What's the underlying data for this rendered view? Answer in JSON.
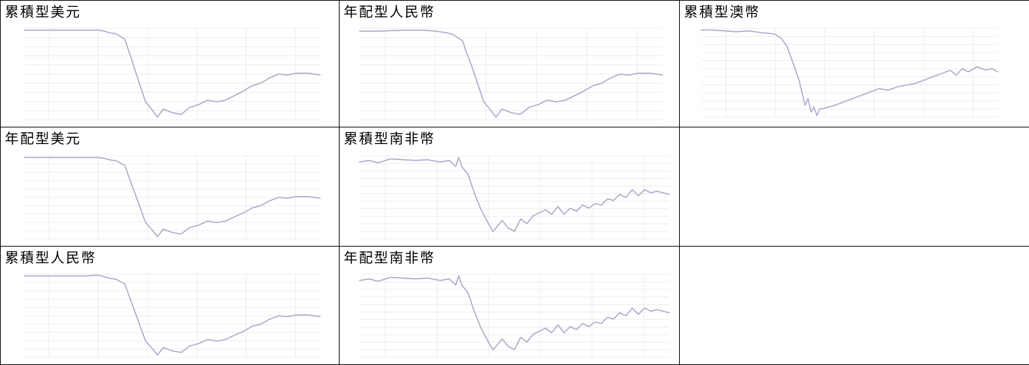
{
  "cells": [
    {
      "title": "累積型美元"
    },
    {
      "title": "年配型人民幣"
    },
    {
      "title": "累積型澳幣"
    },
    {
      "title": "年配型美元"
    },
    {
      "title": "累積型南非幣"
    },
    {
      "title": ""
    },
    {
      "title": "累積型人民幣"
    },
    {
      "title": "年配型南非幣"
    },
    {
      "title": ""
    }
  ],
  "chart_data": [
    {
      "type": "line",
      "title": "累積型美元",
      "ylim": [
        5.0,
        10.1
      ],
      "x_positions": [
        0.0,
        0.07,
        0.14,
        0.21,
        0.25,
        0.27,
        0.29,
        0.31,
        0.34,
        0.35,
        0.37,
        0.39,
        0.41,
        0.43,
        0.45,
        0.47,
        0.5,
        0.53,
        0.56,
        0.59,
        0.62,
        0.65,
        0.68,
        0.71,
        0.74,
        0.77,
        0.8,
        0.83,
        0.86,
        0.89,
        0.92,
        0.96,
        1.0
      ],
      "values": [
        10.0,
        10.0,
        10.0,
        10.0,
        10.0,
        9.95,
        9.85,
        9.8,
        9.5,
        9.0,
        8.0,
        7.0,
        6.0,
        5.6,
        5.15,
        5.6,
        5.4,
        5.3,
        5.7,
        5.85,
        6.1,
        6.0,
        6.1,
        6.35,
        6.6,
        6.9,
        7.05,
        7.35,
        7.55,
        7.5,
        7.6,
        7.6,
        7.5
      ],
      "x_ticks": [
        "",
        "",
        "",
        "",
        "",
        ""
      ],
      "y_ticks": [
        "",
        "",
        "",
        "",
        "",
        "",
        "",
        "",
        "",
        "",
        ""
      ],
      "grid": true,
      "color": "#a9a9cc"
    },
    {
      "type": "line",
      "title": "年配型人民幣",
      "ylim": [
        5.0,
        10.1
      ],
      "x_positions": [
        0.0,
        0.07,
        0.14,
        0.21,
        0.25,
        0.27,
        0.29,
        0.31,
        0.34,
        0.35,
        0.37,
        0.39,
        0.41,
        0.43,
        0.45,
        0.47,
        0.5,
        0.53,
        0.56,
        0.59,
        0.62,
        0.65,
        0.68,
        0.71,
        0.74,
        0.77,
        0.8,
        0.83,
        0.86,
        0.89,
        0.92,
        0.96,
        1.0
      ],
      "values": [
        9.95,
        9.95,
        10.0,
        10.0,
        9.95,
        9.9,
        9.85,
        9.75,
        9.4,
        8.9,
        8.0,
        7.0,
        6.0,
        5.6,
        5.15,
        5.6,
        5.4,
        5.3,
        5.7,
        5.85,
        6.1,
        6.0,
        6.1,
        6.35,
        6.6,
        6.9,
        7.05,
        7.35,
        7.55,
        7.5,
        7.6,
        7.6,
        7.5
      ],
      "x_ticks": [
        "",
        "",
        "",
        "",
        "",
        ""
      ],
      "y_ticks": [
        "",
        "",
        "",
        "",
        "",
        "",
        "",
        "",
        "",
        "",
        ""
      ],
      "grid": true,
      "color": "#a9a9cc"
    },
    {
      "type": "line",
      "title": "累積型澳幣",
      "ylim": [
        4.8,
        10.1
      ],
      "x_positions": [
        0.0,
        0.04,
        0.08,
        0.12,
        0.16,
        0.2,
        0.23,
        0.25,
        0.27,
        0.29,
        0.31,
        0.33,
        0.35,
        0.36,
        0.37,
        0.38,
        0.39,
        0.4,
        0.41,
        0.43,
        0.45,
        0.48,
        0.51,
        0.54,
        0.57,
        0.6,
        0.63,
        0.66,
        0.69,
        0.72,
        0.75,
        0.78,
        0.81,
        0.84,
        0.86,
        0.88,
        0.9,
        0.93,
        0.96,
        0.98,
        1.0
      ],
      "values": [
        10.0,
        10.0,
        9.95,
        9.9,
        9.95,
        9.85,
        9.8,
        9.75,
        9.5,
        9.0,
        8.0,
        7.0,
        5.5,
        5.9,
        5.1,
        5.4,
        4.9,
        5.3,
        5.3,
        5.4,
        5.5,
        5.7,
        5.9,
        6.1,
        6.3,
        6.5,
        6.4,
        6.6,
        6.7,
        6.8,
        7.0,
        7.2,
        7.4,
        7.6,
        7.3,
        7.7,
        7.5,
        7.8,
        7.6,
        7.7,
        7.5
      ],
      "x_ticks": [
        "",
        "",
        "",
        "",
        "",
        ""
      ],
      "y_ticks": [
        "",
        "",
        "",
        "",
        "",
        "",
        "",
        "",
        "",
        "",
        "",
        ""
      ],
      "grid": true,
      "color": "#a9a9cc"
    },
    {
      "type": "line",
      "title": "年配型美元",
      "ylim": [
        5.0,
        10.1
      ],
      "x_positions": [
        0.0,
        0.07,
        0.14,
        0.21,
        0.25,
        0.27,
        0.29,
        0.31,
        0.34,
        0.35,
        0.37,
        0.39,
        0.41,
        0.43,
        0.45,
        0.47,
        0.5,
        0.53,
        0.56,
        0.59,
        0.62,
        0.65,
        0.68,
        0.71,
        0.74,
        0.77,
        0.8,
        0.83,
        0.86,
        0.89,
        0.92,
        0.96,
        1.0
      ],
      "values": [
        10.0,
        10.0,
        10.0,
        10.0,
        10.0,
        9.95,
        9.85,
        9.8,
        9.5,
        9.0,
        8.0,
        7.0,
        6.0,
        5.6,
        5.15,
        5.6,
        5.4,
        5.3,
        5.7,
        5.85,
        6.1,
        6.0,
        6.1,
        6.35,
        6.6,
        6.9,
        7.05,
        7.35,
        7.55,
        7.5,
        7.6,
        7.6,
        7.5
      ],
      "x_ticks": [
        "",
        "",
        "",
        "",
        "",
        ""
      ],
      "y_ticks": [
        "",
        "",
        "",
        "",
        "",
        "",
        "",
        "",
        "",
        "",
        ""
      ],
      "grid": true,
      "color": "#a9a9cc"
    },
    {
      "type": "line",
      "title": "累積型南非幣",
      "ylim": [
        4.8,
        10.2
      ],
      "x_positions": [
        0.0,
        0.03,
        0.06,
        0.1,
        0.14,
        0.18,
        0.22,
        0.26,
        0.29,
        0.31,
        0.32,
        0.33,
        0.35,
        0.37,
        0.39,
        0.41,
        0.43,
        0.44,
        0.46,
        0.48,
        0.5,
        0.52,
        0.54,
        0.56,
        0.58,
        0.6,
        0.62,
        0.64,
        0.66,
        0.68,
        0.7,
        0.72,
        0.74,
        0.76,
        0.78,
        0.8,
        0.82,
        0.84,
        0.86,
        0.88,
        0.9,
        0.92,
        0.94,
        0.96,
        1.0
      ],
      "values": [
        9.8,
        9.9,
        9.75,
        10.0,
        9.95,
        9.9,
        9.95,
        9.8,
        9.9,
        9.5,
        10.1,
        9.5,
        9.0,
        7.8,
        6.8,
        6.0,
        5.3,
        5.5,
        6.0,
        5.5,
        5.3,
        6.1,
        5.8,
        6.3,
        6.5,
        6.7,
        6.4,
        6.9,
        6.4,
        6.8,
        6.6,
        7.0,
        6.8,
        7.1,
        7.0,
        7.4,
        7.3,
        7.7,
        7.5,
        8.0,
        7.6,
        8.0,
        7.8,
        7.9,
        7.7
      ],
      "x_ticks": [
        "",
        "",
        "",
        "",
        "",
        ""
      ],
      "y_ticks": [
        "",
        "",
        "",
        "",
        "",
        "",
        "",
        "",
        "",
        "",
        "",
        ""
      ],
      "grid": true,
      "color": "#a9a9cc"
    },
    {
      "type": "line",
      "title": "累積型人民幣",
      "ylim": [
        5.0,
        10.1
      ],
      "x_positions": [
        0.0,
        0.07,
        0.14,
        0.21,
        0.25,
        0.27,
        0.29,
        0.31,
        0.34,
        0.35,
        0.37,
        0.39,
        0.41,
        0.43,
        0.45,
        0.47,
        0.5,
        0.53,
        0.56,
        0.59,
        0.62,
        0.65,
        0.68,
        0.71,
        0.74,
        0.77,
        0.8,
        0.83,
        0.86,
        0.89,
        0.92,
        0.96,
        1.0
      ],
      "values": [
        10.0,
        10.0,
        10.0,
        10.0,
        10.05,
        9.95,
        9.85,
        9.8,
        9.5,
        9.0,
        8.0,
        7.0,
        6.0,
        5.6,
        5.15,
        5.6,
        5.4,
        5.3,
        5.7,
        5.85,
        6.1,
        6.0,
        6.1,
        6.35,
        6.6,
        6.9,
        7.05,
        7.35,
        7.55,
        7.5,
        7.6,
        7.6,
        7.5
      ],
      "x_ticks": [
        "",
        "",
        "",
        "",
        "",
        ""
      ],
      "y_ticks": [
        "",
        "",
        "",
        "",
        "",
        "",
        "",
        "",
        "",
        "",
        ""
      ],
      "grid": true,
      "color": "#a9a9cc"
    },
    {
      "type": "line",
      "title": "年配型南非幣",
      "ylim": [
        4.8,
        10.2
      ],
      "x_positions": [
        0.0,
        0.03,
        0.06,
        0.1,
        0.14,
        0.18,
        0.22,
        0.26,
        0.29,
        0.31,
        0.32,
        0.33,
        0.35,
        0.37,
        0.39,
        0.41,
        0.43,
        0.44,
        0.46,
        0.48,
        0.5,
        0.52,
        0.54,
        0.56,
        0.58,
        0.6,
        0.62,
        0.64,
        0.66,
        0.68,
        0.7,
        0.72,
        0.74,
        0.76,
        0.78,
        0.8,
        0.82,
        0.84,
        0.86,
        0.88,
        0.9,
        0.92,
        0.94,
        0.96,
        1.0
      ],
      "values": [
        9.8,
        9.9,
        9.75,
        10.0,
        9.95,
        9.9,
        9.95,
        9.8,
        9.9,
        9.5,
        10.1,
        9.5,
        9.0,
        7.8,
        6.8,
        6.0,
        5.3,
        5.5,
        6.0,
        5.5,
        5.3,
        6.1,
        5.8,
        6.3,
        6.5,
        6.7,
        6.4,
        6.9,
        6.4,
        6.8,
        6.6,
        7.0,
        6.8,
        7.1,
        7.0,
        7.4,
        7.3,
        7.7,
        7.5,
        8.0,
        7.6,
        8.0,
        7.8,
        7.9,
        7.7
      ],
      "x_ticks": [
        "",
        "",
        "",
        "",
        "",
        ""
      ],
      "y_ticks": [
        "",
        "",
        "",
        "",
        "",
        "",
        "",
        "",
        "",
        "",
        "",
        ""
      ],
      "grid": true,
      "color": "#a9a9cc"
    }
  ]
}
